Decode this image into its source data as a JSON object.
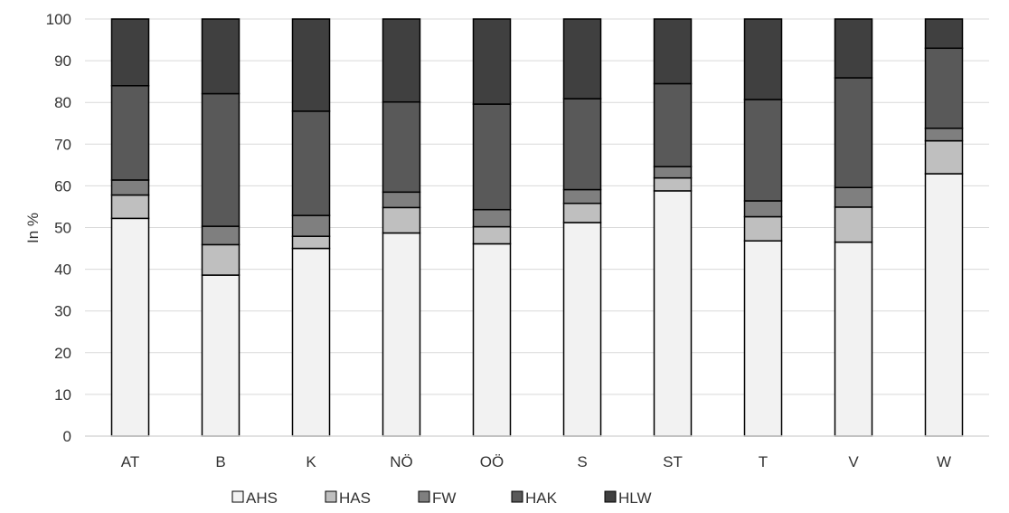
{
  "chart_data": {
    "type": "bar",
    "stacked": true,
    "title": "",
    "xlabel": "",
    "ylabel": "In %",
    "ylim": [
      0,
      100
    ],
    "yticks": [
      0,
      10,
      20,
      30,
      40,
      50,
      60,
      70,
      80,
      90,
      100
    ],
    "grid": "horizontal",
    "legend_position": "bottom",
    "categories": [
      "AT",
      "B",
      "K",
      "NÖ",
      "OÖ",
      "S",
      "ST",
      "T",
      "V",
      "W"
    ],
    "series": [
      {
        "name": "AHS",
        "color": "#f2f2f2",
        "values": [
          52.2,
          38.6,
          45.0,
          48.7,
          46.1,
          51.2,
          58.8,
          46.8,
          46.5,
          62.9
        ]
      },
      {
        "name": "HAS",
        "color": "#bfbfbf",
        "values": [
          5.6,
          7.3,
          2.9,
          6.1,
          4.1,
          4.6,
          3.1,
          5.8,
          8.4,
          7.9
        ]
      },
      {
        "name": "FW",
        "color": "#7f7f7f",
        "values": [
          3.6,
          4.4,
          5.0,
          3.7,
          4.1,
          3.3,
          2.7,
          3.8,
          4.7,
          3.0
        ]
      },
      {
        "name": "HAK",
        "color": "#595959",
        "values": [
          22.6,
          31.8,
          25.0,
          21.6,
          25.3,
          21.8,
          19.9,
          24.3,
          26.3,
          19.2
        ]
      },
      {
        "name": "HLW",
        "color": "#404040",
        "values": [
          16.0,
          17.9,
          22.1,
          19.9,
          20.4,
          19.1,
          15.5,
          19.3,
          14.1,
          7.0
        ]
      }
    ]
  }
}
